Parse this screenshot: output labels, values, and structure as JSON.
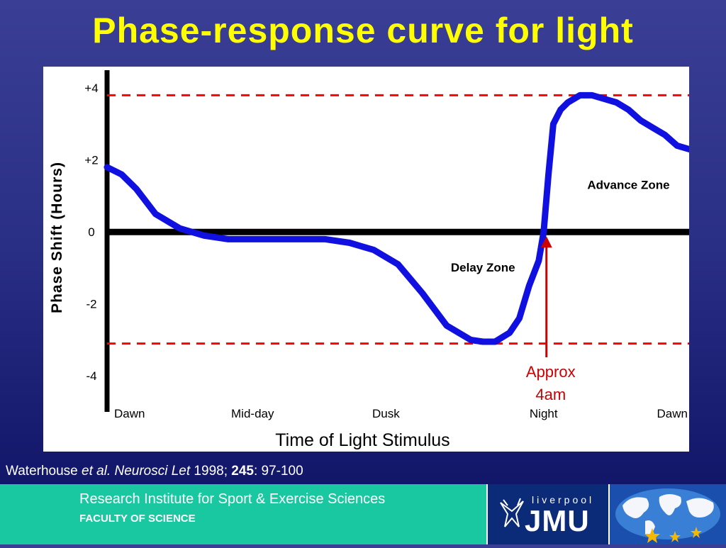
{
  "title": "Phase-response curve for light",
  "citation": {
    "authors": "Waterhouse ",
    "etal": "et al. Neurosci Let",
    "year": " 1998; ",
    "volume": "245",
    "pages": ": 97-100"
  },
  "footer": {
    "institute": "Research Institute for Sport & Exercise Sciences",
    "faculty": "FACULTY OF SCIENCE",
    "jmu_small": "liverpool",
    "jmu_big": "JMU"
  },
  "colors": {
    "title": "#ffff00",
    "curve": "#1010e0",
    "dashed": "#ff0000",
    "annotation": "#cc0000",
    "footer": "#19c8a0"
  },
  "chart_data": {
    "type": "line",
    "title": "",
    "xlabel": "Time of Light Stimulus",
    "ylabel": "Phase Shift (Hours)",
    "ylim": [
      -5,
      4.3
    ],
    "xlim": [
      0,
      24
    ],
    "x_tick_labels": [
      "Dawn",
      "Mid-day",
      "Dusk",
      "Night",
      "Dawn"
    ],
    "x_tick_positions": [
      0,
      6,
      11.5,
      18,
      24
    ],
    "y_ticks": [
      4,
      2,
      0,
      -2,
      -4
    ],
    "y_tick_labels": [
      "+4",
      "+2",
      "0",
      "-2",
      "-4"
    ],
    "series": [
      {
        "x": [
          0,
          0.6,
          1.2,
          2,
          3,
          4,
          5,
          6,
          7,
          8,
          9,
          10,
          11,
          12,
          13,
          14,
          15,
          15.5,
          16,
          16.6,
          17,
          17.4,
          17.8,
          18,
          18.2,
          18.4,
          18.7,
          19,
          19.5,
          20,
          20.5,
          21,
          21.5,
          22,
          22.5,
          23,
          23.5,
          24
        ],
        "y": [
          1.8,
          1.6,
          1.2,
          0.5,
          0.1,
          -0.1,
          -0.2,
          -0.2,
          -0.2,
          -0.2,
          -0.2,
          -0.3,
          -0.5,
          -0.9,
          -1.7,
          -2.6,
          -3.0,
          -3.05,
          -3.05,
          -2.8,
          -2.4,
          -1.5,
          -0.8,
          0,
          1.6,
          3.0,
          3.4,
          3.6,
          3.8,
          3.8,
          3.7,
          3.6,
          3.4,
          3.1,
          2.9,
          2.7,
          2.4,
          2.3
        ]
      }
    ],
    "reference_lines": {
      "zero": 0,
      "dashed": [
        3.8,
        -3.1
      ]
    },
    "annotations": [
      {
        "text": "Advance Zone",
        "x": 21.5,
        "y": 1.2
      },
      {
        "text": "Delay Zone",
        "x": 15.5,
        "y": -1.1
      },
      {
        "text": "Approx 4am",
        "x": 18,
        "line1": "Approx",
        "line2": "4am"
      }
    ]
  }
}
